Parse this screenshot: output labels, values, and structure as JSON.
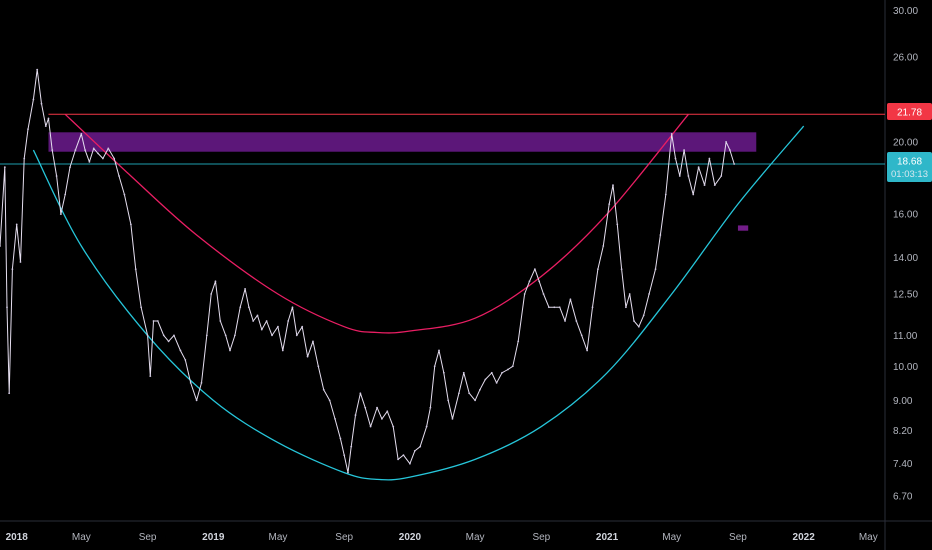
{
  "chart_data": {
    "type": "line",
    "x_range": [
      "2017-12-01",
      "2022-06-01"
    ],
    "y_scale": "log",
    "ylim": [
      6.2,
      31.0
    ],
    "y_ticks": [
      "30.00",
      "26.00",
      "20.00",
      "16.00",
      "14.00",
      "12.50",
      "11.00",
      "10.00",
      "9.00",
      "8.20",
      "7.40",
      "6.70"
    ],
    "x_ticks": [
      {
        "date": "2018-01-01",
        "label": "2018",
        "major": true
      },
      {
        "date": "2018-05-01",
        "label": "May",
        "major": false
      },
      {
        "date": "2018-09-01",
        "label": "Sep",
        "major": false
      },
      {
        "date": "2019-01-01",
        "label": "2019",
        "major": true
      },
      {
        "date": "2019-05-01",
        "label": "May",
        "major": false
      },
      {
        "date": "2019-09-01",
        "label": "Sep",
        "major": false
      },
      {
        "date": "2020-01-01",
        "label": "2020",
        "major": true
      },
      {
        "date": "2020-05-01",
        "label": "May",
        "major": false
      },
      {
        "date": "2020-09-01",
        "label": "Sep",
        "major": false
      },
      {
        "date": "2021-01-01",
        "label": "2021",
        "major": true
      },
      {
        "date": "2021-05-01",
        "label": "May",
        "major": false
      },
      {
        "date": "2021-09-01",
        "label": "Sep",
        "major": false
      },
      {
        "date": "2022-01-01",
        "label": "2022",
        "major": true
      },
      {
        "date": "2022-05-01",
        "label": "May",
        "major": false
      }
    ],
    "series": [
      {
        "values": [
          [
            "2017-12-01",
            14.5
          ],
          [
            "2017-12-10",
            18.5
          ],
          [
            "2017-12-14",
            12.0
          ],
          [
            "2017-12-18",
            9.2
          ],
          [
            "2017-12-24",
            13.5
          ],
          [
            "2018-01-01",
            15.5
          ],
          [
            "2018-01-08",
            13.8
          ],
          [
            "2018-01-15",
            19.0
          ],
          [
            "2018-01-22",
            20.8
          ],
          [
            "2018-02-01",
            22.8
          ],
          [
            "2018-02-08",
            25.0
          ],
          [
            "2018-02-16",
            22.5
          ],
          [
            "2018-02-24",
            21.0
          ],
          [
            "2018-03-01",
            21.5
          ],
          [
            "2018-03-08",
            19.5
          ],
          [
            "2018-03-16",
            18.0
          ],
          [
            "2018-03-24",
            16.0
          ],
          [
            "2018-04-01",
            17.0
          ],
          [
            "2018-04-10",
            18.5
          ],
          [
            "2018-04-20",
            19.5
          ],
          [
            "2018-05-01",
            20.5
          ],
          [
            "2018-05-08",
            19.5
          ],
          [
            "2018-05-16",
            18.8
          ],
          [
            "2018-05-24",
            19.6
          ],
          [
            "2018-06-01",
            19.3
          ],
          [
            "2018-06-10",
            19.0
          ],
          [
            "2018-06-20",
            19.6
          ],
          [
            "2018-07-01",
            19.0
          ],
          [
            "2018-07-10",
            18.0
          ],
          [
            "2018-07-20",
            17.0
          ],
          [
            "2018-08-01",
            15.5
          ],
          [
            "2018-08-10",
            13.5
          ],
          [
            "2018-08-20",
            12.0
          ],
          [
            "2018-09-01",
            11.0
          ],
          [
            "2018-09-06",
            9.7
          ],
          [
            "2018-09-12",
            11.5
          ],
          [
            "2018-09-20",
            11.5
          ],
          [
            "2018-10-01",
            11.0
          ],
          [
            "2018-10-10",
            10.8
          ],
          [
            "2018-10-20",
            11.0
          ],
          [
            "2018-11-01",
            10.5
          ],
          [
            "2018-11-10",
            10.2
          ],
          [
            "2018-11-20",
            9.5
          ],
          [
            "2018-12-01",
            9.0
          ],
          [
            "2018-12-10",
            9.5
          ],
          [
            "2018-12-20",
            11.0
          ],
          [
            "2018-12-28",
            12.5
          ],
          [
            "2019-01-05",
            13.0
          ],
          [
            "2019-01-14",
            11.5
          ],
          [
            "2019-01-24",
            11.0
          ],
          [
            "2019-02-01",
            10.5
          ],
          [
            "2019-02-10",
            11.0
          ],
          [
            "2019-02-20",
            12.0
          ],
          [
            "2019-03-01",
            12.7
          ],
          [
            "2019-03-08",
            12.0
          ],
          [
            "2019-03-16",
            11.5
          ],
          [
            "2019-03-24",
            11.7
          ],
          [
            "2019-04-01",
            11.2
          ],
          [
            "2019-04-10",
            11.5
          ],
          [
            "2019-04-20",
            11.0
          ],
          [
            "2019-05-01",
            11.3
          ],
          [
            "2019-05-10",
            10.5
          ],
          [
            "2019-05-20",
            11.5
          ],
          [
            "2019-05-28",
            12.0
          ],
          [
            "2019-06-05",
            11.0
          ],
          [
            "2019-06-15",
            11.3
          ],
          [
            "2019-06-25",
            10.3
          ],
          [
            "2019-07-05",
            10.8
          ],
          [
            "2019-07-15",
            10.0
          ],
          [
            "2019-07-25",
            9.3
          ],
          [
            "2019-08-05",
            9.0
          ],
          [
            "2019-08-15",
            8.5
          ],
          [
            "2019-08-25",
            8.0
          ],
          [
            "2019-09-01",
            7.6
          ],
          [
            "2019-09-08",
            7.2
          ],
          [
            "2019-09-14",
            7.8
          ],
          [
            "2019-09-22",
            8.6
          ],
          [
            "2019-10-01",
            9.2
          ],
          [
            "2019-10-10",
            8.8
          ],
          [
            "2019-10-20",
            8.3
          ],
          [
            "2019-11-01",
            8.8
          ],
          [
            "2019-11-10",
            8.5
          ],
          [
            "2019-11-20",
            8.7
          ],
          [
            "2019-12-01",
            8.3
          ],
          [
            "2019-12-10",
            7.5
          ],
          [
            "2019-12-20",
            7.6
          ],
          [
            "2020-01-01",
            7.4
          ],
          [
            "2020-01-10",
            7.7
          ],
          [
            "2020-01-20",
            7.8
          ],
          [
            "2020-02-01",
            8.3
          ],
          [
            "2020-02-08",
            8.8
          ],
          [
            "2020-02-16",
            10.0
          ],
          [
            "2020-02-24",
            10.5
          ],
          [
            "2020-03-04",
            9.8
          ],
          [
            "2020-03-12",
            9.0
          ],
          [
            "2020-03-20",
            8.5
          ],
          [
            "2020-04-01",
            9.2
          ],
          [
            "2020-04-10",
            9.8
          ],
          [
            "2020-04-20",
            9.2
          ],
          [
            "2020-05-01",
            9.0
          ],
          [
            "2020-05-10",
            9.3
          ],
          [
            "2020-05-20",
            9.6
          ],
          [
            "2020-06-01",
            9.8
          ],
          [
            "2020-06-10",
            9.5
          ],
          [
            "2020-06-20",
            9.8
          ],
          [
            "2020-07-01",
            9.9
          ],
          [
            "2020-07-10",
            10.0
          ],
          [
            "2020-07-20",
            10.8
          ],
          [
            "2020-08-01",
            12.5
          ],
          [
            "2020-08-10",
            13.0
          ],
          [
            "2020-08-20",
            13.5
          ],
          [
            "2020-08-28",
            13.0
          ],
          [
            "2020-09-05",
            12.5
          ],
          [
            "2020-09-15",
            12.0
          ],
          [
            "2020-09-25",
            12.0
          ],
          [
            "2020-10-05",
            12.0
          ],
          [
            "2020-10-15",
            11.5
          ],
          [
            "2020-10-25",
            12.3
          ],
          [
            "2020-11-05",
            11.5
          ],
          [
            "2020-11-15",
            11.0
          ],
          [
            "2020-11-25",
            10.5
          ],
          [
            "2020-12-05",
            12.0
          ],
          [
            "2020-12-15",
            13.5
          ],
          [
            "2020-12-25",
            14.5
          ],
          [
            "2021-01-05",
            16.5
          ],
          [
            "2021-01-12",
            17.5
          ],
          [
            "2021-01-20",
            15.5
          ],
          [
            "2021-01-28",
            13.5
          ],
          [
            "2021-02-05",
            12.0
          ],
          [
            "2021-02-12",
            12.5
          ],
          [
            "2021-02-20",
            11.5
          ],
          [
            "2021-03-01",
            11.3
          ],
          [
            "2021-03-10",
            11.7
          ],
          [
            "2021-03-20",
            12.5
          ],
          [
            "2021-04-01",
            13.5
          ],
          [
            "2021-04-10",
            15.0
          ],
          [
            "2021-04-20",
            17.0
          ],
          [
            "2021-05-01",
            20.5
          ],
          [
            "2021-05-08",
            19.0
          ],
          [
            "2021-05-16",
            18.0
          ],
          [
            "2021-05-24",
            19.5
          ],
          [
            "2021-06-01",
            18.0
          ],
          [
            "2021-06-10",
            17.0
          ],
          [
            "2021-06-20",
            18.5
          ],
          [
            "2021-07-01",
            17.5
          ],
          [
            "2021-07-10",
            19.0
          ],
          [
            "2021-07-20",
            17.5
          ],
          [
            "2021-08-01",
            18.0
          ],
          [
            "2021-08-10",
            20.0
          ],
          [
            "2021-08-17",
            19.5
          ],
          [
            "2021-08-25",
            18.68
          ]
        ]
      }
    ],
    "annotations": {
      "resistance_line": {
        "value": 21.78,
        "from": "2018-03-01",
        "to": "2022-06-01",
        "color": "#f23645"
      },
      "zone": {
        "from": "2018-03-01",
        "to": "2021-10-05",
        "low": 19.4,
        "high": 20.6,
        "color": "#7b1fa2"
      },
      "marker": {
        "from": "2021-09-01",
        "to": "2021-09-20",
        "low": 15.2,
        "high": 15.45,
        "color": "#8e24aa"
      },
      "lower_curve": {
        "color": "#26c6da",
        "points": [
          [
            "2018-02-01",
            19.5
          ],
          [
            "2018-05-01",
            14.5
          ],
          [
            "2018-09-01",
            11.0
          ],
          [
            "2019-01-01",
            9.0
          ],
          [
            "2019-05-01",
            7.9
          ],
          [
            "2019-09-01",
            7.2
          ],
          [
            "2019-11-01",
            7.05
          ],
          [
            "2020-01-01",
            7.1
          ],
          [
            "2020-05-01",
            7.5
          ],
          [
            "2020-09-01",
            8.3
          ],
          [
            "2021-01-01",
            9.8
          ],
          [
            "2021-05-01",
            12.5
          ],
          [
            "2021-09-01",
            16.5
          ],
          [
            "2022-01-01",
            21.0
          ]
        ]
      },
      "upper_curve": {
        "color": "#e91e63",
        "points": [
          [
            "2018-04-01",
            21.78
          ],
          [
            "2018-08-01",
            18.0
          ],
          [
            "2018-12-01",
            15.0
          ],
          [
            "2019-05-01",
            12.5
          ],
          [
            "2019-09-01",
            11.3
          ],
          [
            "2019-11-01",
            11.1
          ],
          [
            "2020-01-01",
            11.15
          ],
          [
            "2020-05-01",
            11.6
          ],
          [
            "2020-09-01",
            13.2
          ],
          [
            "2021-01-01",
            16.0
          ],
          [
            "2021-06-01",
            21.78
          ]
        ]
      },
      "last_price_line": {
        "value": 18.68,
        "color": "#26c6da"
      }
    },
    "price_labels": {
      "resistance": "21.78",
      "last": "18.68",
      "countdown": "01:03:13"
    }
  }
}
